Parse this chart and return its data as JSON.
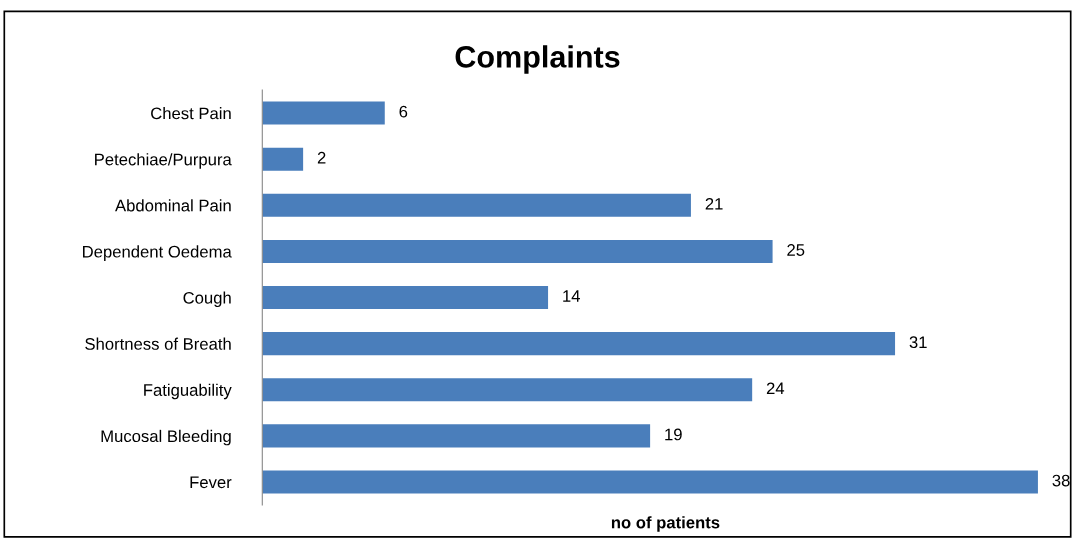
{
  "chart_data": {
    "type": "bar",
    "orientation": "horizontal",
    "title": "Complaints",
    "xlabel": "no of patients",
    "categories": [
      "Chest Pain",
      "Petechiae/Purpura",
      "Abdominal Pain",
      "Dependent Oedema",
      "Cough",
      "Shortness of Breath",
      "Fatiguability",
      "Mucosal Bleeding",
      "Fever"
    ],
    "values": [
      6,
      2,
      21,
      25,
      14,
      31,
      24,
      19,
      38
    ],
    "color": "#4a7ebb",
    "xlim": [
      0,
      39.5
    ],
    "data_labels": true,
    "tick_labels": "y",
    "grid": false,
    "legend": false
  }
}
